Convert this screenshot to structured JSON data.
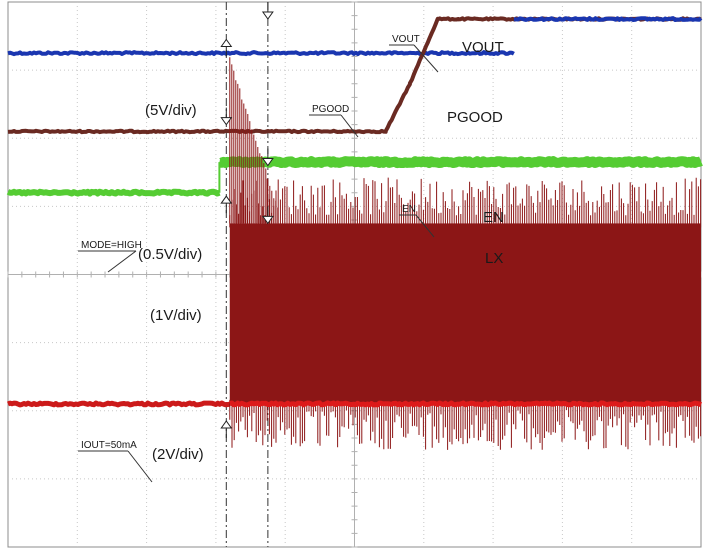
{
  "chart_data": {
    "type": "line",
    "title": "",
    "xlabel": "",
    "ylabel": "",
    "grid": true,
    "x_divisions": 10,
    "y_divisions": 8,
    "channel_labels": [
      "VOUT",
      "PGOOD",
      "EN",
      "LX"
    ],
    "scale_labels": [
      "(5V/div)",
      "(0.5V/div)",
      "(1V/div)",
      "(2V/div)"
    ],
    "annotations": [
      "VOUT",
      "PGOOD",
      "EN",
      "MODE=HIGH",
      "IOUT=50mA"
    ],
    "series": [
      {
        "name": "VOUT",
        "color": "#6a2a22",
        "x_div": [
          0,
          5.45,
          5.8,
          6.2,
          6.5,
          10
        ],
        "y_div": [
          2.1,
          2.1,
          2.8,
          3.75,
          3.75,
          3.75
        ]
      },
      {
        "name": "VOUT",
        "color": "#1a36b0",
        "x_div": [
          7.3,
          10
        ],
        "y_div": [
          3.75,
          3.75
        ]
      },
      {
        "name": "PGOOD",
        "color": "#1a36b0",
        "x_div": [
          0,
          7.3
        ],
        "y_div": [
          3.25,
          3.25
        ]
      },
      {
        "name": "EN",
        "color": "#55cc33",
        "x_div": [
          0,
          3.05,
          3.05,
          10
        ],
        "y_div": [
          1.2,
          1.2,
          1.65,
          1.65
        ]
      },
      {
        "name": "LX",
        "color": "#8c1616",
        "x_div": [
          0,
          3.2,
          3.2,
          10
        ],
        "y_div": [
          -1.9,
          -1.9,
          0.75,
          0.75
        ]
      }
    ]
  }
}
